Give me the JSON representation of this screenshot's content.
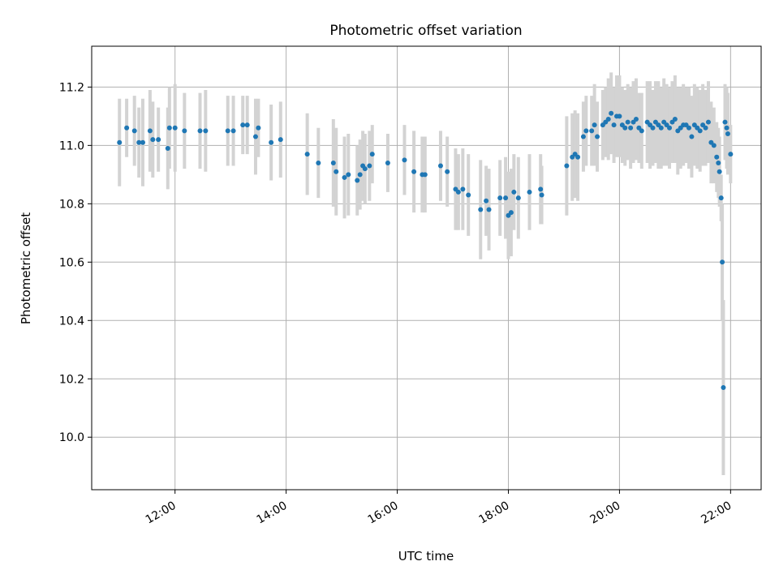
{
  "chart_data": {
    "type": "scatter",
    "title": "Photometric offset variation",
    "xlabel": "UTC time",
    "ylabel": "Photometric offset",
    "grid": true,
    "x_range_hours": [
      10.5,
      22.55
    ],
    "ylim": [
      9.82,
      11.34
    ],
    "x_ticks": [
      {
        "hour": 12,
        "label": "12:00"
      },
      {
        "hour": 14,
        "label": "14:00"
      },
      {
        "hour": 16,
        "label": "16:00"
      },
      {
        "hour": 18,
        "label": "18:00"
      },
      {
        "hour": 20,
        "label": "20:00"
      },
      {
        "hour": 22,
        "label": "22:00"
      }
    ],
    "y_ticks": [
      {
        "value": 10.0,
        "label": "10.0"
      },
      {
        "value": 10.2,
        "label": "10.2"
      },
      {
        "value": 10.4,
        "label": "10.4"
      },
      {
        "value": 10.6,
        "label": "10.6"
      },
      {
        "value": 10.8,
        "label": "10.8"
      },
      {
        "value": 11.0,
        "label": "11.0"
      },
      {
        "value": 11.2,
        "label": "11.2"
      }
    ],
    "colors": {
      "point": "#1f77b4",
      "errorbar": "#d3d3d3",
      "grid": "#b0b0b0"
    },
    "series": [
      {
        "x_hours": [
          11.0,
          11.13,
          11.27,
          11.35,
          11.42,
          11.55,
          11.6,
          11.7,
          11.87,
          11.9,
          12.0,
          12.17,
          12.45,
          12.55,
          12.95,
          13.05,
          13.22,
          13.3,
          13.45,
          13.5,
          13.73,
          13.9,
          14.38,
          14.58,
          14.85,
          14.9,
          15.05,
          15.12,
          15.28,
          15.33,
          15.38,
          15.42,
          15.5,
          15.55,
          15.83,
          16.13,
          16.3,
          16.45,
          16.5,
          16.78,
          16.9,
          17.05,
          17.1,
          17.18,
          17.28,
          17.5,
          17.6,
          17.65,
          17.85,
          17.95,
          18.0,
          18.05,
          18.1,
          18.18,
          18.38,
          18.58,
          18.6,
          19.05,
          19.15,
          19.2,
          19.25,
          19.35,
          19.4,
          19.5,
          19.55,
          19.6,
          19.7,
          19.75,
          19.8,
          19.85,
          19.9,
          19.95,
          20.0,
          20.05,
          20.1,
          20.15,
          20.2,
          20.25,
          20.3,
          20.35,
          20.4,
          20.5,
          20.55,
          20.6,
          20.65,
          20.7,
          20.75,
          20.8,
          20.85,
          20.9,
          20.95,
          21.0,
          21.05,
          21.1,
          21.15,
          21.2,
          21.25,
          21.3,
          21.35,
          21.4,
          21.45,
          21.5,
          21.55,
          21.6,
          21.65,
          21.7,
          21.75,
          21.78,
          21.8,
          21.83,
          21.85,
          21.87,
          21.9,
          21.93,
          21.95,
          22.0
        ],
        "y": [
          11.01,
          11.06,
          11.05,
          11.01,
          11.01,
          11.05,
          11.02,
          11.02,
          10.99,
          11.06,
          11.06,
          11.05,
          11.05,
          11.05,
          11.05,
          11.05,
          11.07,
          11.07,
          11.03,
          11.06,
          11.01,
          11.02,
          10.97,
          10.94,
          10.94,
          10.91,
          10.89,
          10.9,
          10.88,
          10.9,
          10.93,
          10.92,
          10.93,
          10.97,
          10.94,
          10.95,
          10.91,
          10.9,
          10.9,
          10.93,
          10.91,
          10.85,
          10.84,
          10.85,
          10.83,
          10.78,
          10.81,
          10.78,
          10.82,
          10.82,
          10.76,
          10.77,
          10.84,
          10.82,
          10.84,
          10.85,
          10.83,
          10.93,
          10.96,
          10.97,
          10.96,
          11.03,
          11.05,
          11.05,
          11.07,
          11.03,
          11.07,
          11.08,
          11.09,
          11.11,
          11.07,
          11.1,
          11.1,
          11.07,
          11.06,
          11.08,
          11.06,
          11.08,
          11.09,
          11.06,
          11.05,
          11.08,
          11.07,
          11.06,
          11.08,
          11.07,
          11.06,
          11.08,
          11.07,
          11.06,
          11.08,
          11.09,
          11.05,
          11.06,
          11.07,
          11.07,
          11.06,
          11.03,
          11.07,
          11.06,
          11.05,
          11.07,
          11.06,
          11.08,
          11.01,
          11.0,
          10.96,
          10.94,
          10.91,
          10.82,
          10.6,
          10.17,
          11.08,
          11.06,
          11.04,
          10.97
        ],
        "yerr": [
          0.15,
          0.1,
          0.12,
          0.12,
          0.15,
          0.14,
          0.13,
          0.11,
          0.14,
          0.14,
          0.15,
          0.13,
          0.13,
          0.14,
          0.12,
          0.12,
          0.1,
          0.1,
          0.13,
          0.1,
          0.13,
          0.13,
          0.14,
          0.12,
          0.15,
          0.15,
          0.14,
          0.14,
          0.12,
          0.12,
          0.12,
          0.12,
          0.12,
          0.1,
          0.1,
          0.12,
          0.14,
          0.13,
          0.13,
          0.12,
          0.12,
          0.14,
          0.13,
          0.14,
          0.14,
          0.17,
          0.12,
          0.14,
          0.13,
          0.14,
          0.15,
          0.15,
          0.13,
          0.14,
          0.13,
          0.12,
          0.1,
          0.17,
          0.15,
          0.15,
          0.15,
          0.12,
          0.12,
          0.12,
          0.14,
          0.12,
          0.12,
          0.12,
          0.14,
          0.14,
          0.13,
          0.14,
          0.14,
          0.13,
          0.13,
          0.13,
          0.14,
          0.14,
          0.14,
          0.12,
          0.13,
          0.14,
          0.15,
          0.13,
          0.14,
          0.15,
          0.14,
          0.15,
          0.14,
          0.14,
          0.14,
          0.15,
          0.15,
          0.14,
          0.14,
          0.13,
          0.14,
          0.14,
          0.14,
          0.14,
          0.14,
          0.14,
          0.13,
          0.14,
          0.14,
          0.13,
          0.12,
          0.12,
          0.12,
          0.08,
          0.2,
          0.3,
          0.13,
          0.14,
          0.14,
          0.1
        ]
      }
    ]
  }
}
